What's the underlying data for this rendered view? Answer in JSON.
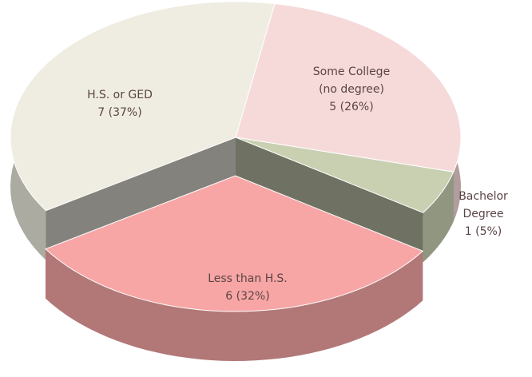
{
  "chart_data": {
    "type": "pie",
    "categories": [
      "Some College (no degree)",
      "Bachelor Degree",
      "Less than H.S.",
      "H.S. or GED"
    ],
    "values": [
      5,
      1,
      6,
      7
    ],
    "value_labels": [
      "5 (26%)",
      "1 (5%)",
      "6 (32%)",
      "7 (37%)"
    ],
    "colors": [
      "#f6dada",
      "#c9d0b2",
      "#f7a5a5",
      "#efede1"
    ],
    "exploded": [
      false,
      false,
      true,
      false
    ]
  }
}
